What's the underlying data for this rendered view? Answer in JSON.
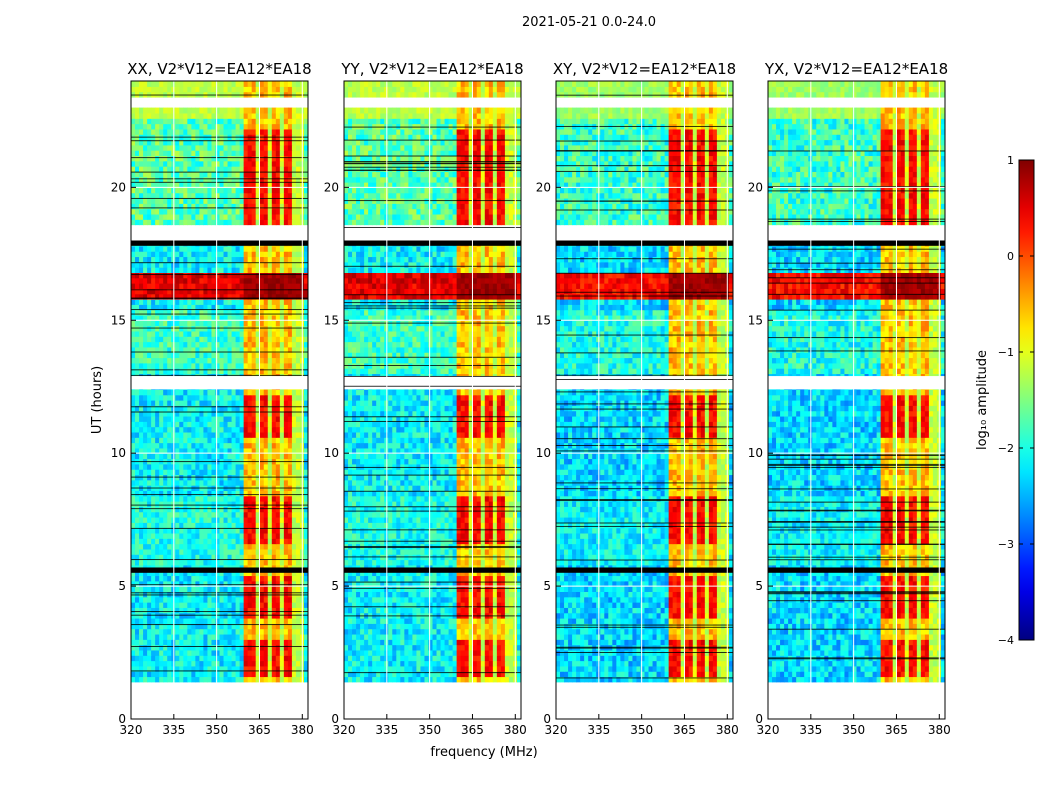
{
  "chart_data": {
    "type": "heatmap",
    "suptitle": "2021-05-21 0.0-24.0",
    "xlabel": "frequency (MHz)",
    "ylabel": "UT (hours)",
    "xlim": [
      320,
      382
    ],
    "ylim": [
      0,
      24
    ],
    "x_ticks": [
      320,
      335,
      350,
      365,
      380
    ],
    "x_tick_labels": [
      "320",
      "335",
      "350",
      "365",
      "380"
    ],
    "y_ticks": [
      0,
      5,
      10,
      15,
      20
    ],
    "y_tick_labels": [
      "0",
      "5",
      "10",
      "15",
      "20"
    ],
    "panels": [
      {
        "title": "XX, V2*V12=EA12*EA18",
        "polarization": "XX"
      },
      {
        "title": "YY, V2*V12=EA12*EA18",
        "polarization": "YY"
      },
      {
        "title": "XY, V2*V12=EA12*EA18",
        "polarization": "XY"
      },
      {
        "title": "YX, V2*V12=EA12*EA18",
        "polarization": "YX"
      }
    ],
    "colorbar": {
      "label": "log₁₀ amplitude",
      "range": [
        -4,
        1
      ],
      "ticks": [
        1,
        0,
        -1,
        -2,
        -3,
        -4
      ],
      "tick_labels": [
        "1",
        "0",
        "−1",
        "−2",
        "−3",
        "−4"
      ],
      "colormap": "jet"
    },
    "data_gaps_hours": [
      [
        0.1,
        1.3
      ],
      [
        18.1,
        18.5
      ],
      [
        23.0,
        23.4
      ]
    ],
    "flagged_rows_hours": [
      [
        12.4,
        12.9
      ],
      [
        17.8,
        18.0
      ],
      [
        5.5,
        5.7
      ]
    ],
    "rfi_band_mhz": [
      360,
      380
    ],
    "rfi_subchannels_mhz": [
      [
        360,
        364
      ],
      [
        365,
        368
      ],
      [
        369,
        372
      ],
      [
        373,
        376
      ]
    ]
  },
  "colors": {
    "background": "#ffffff",
    "axes_edge": "#000000",
    "grid": "#ffffff"
  }
}
